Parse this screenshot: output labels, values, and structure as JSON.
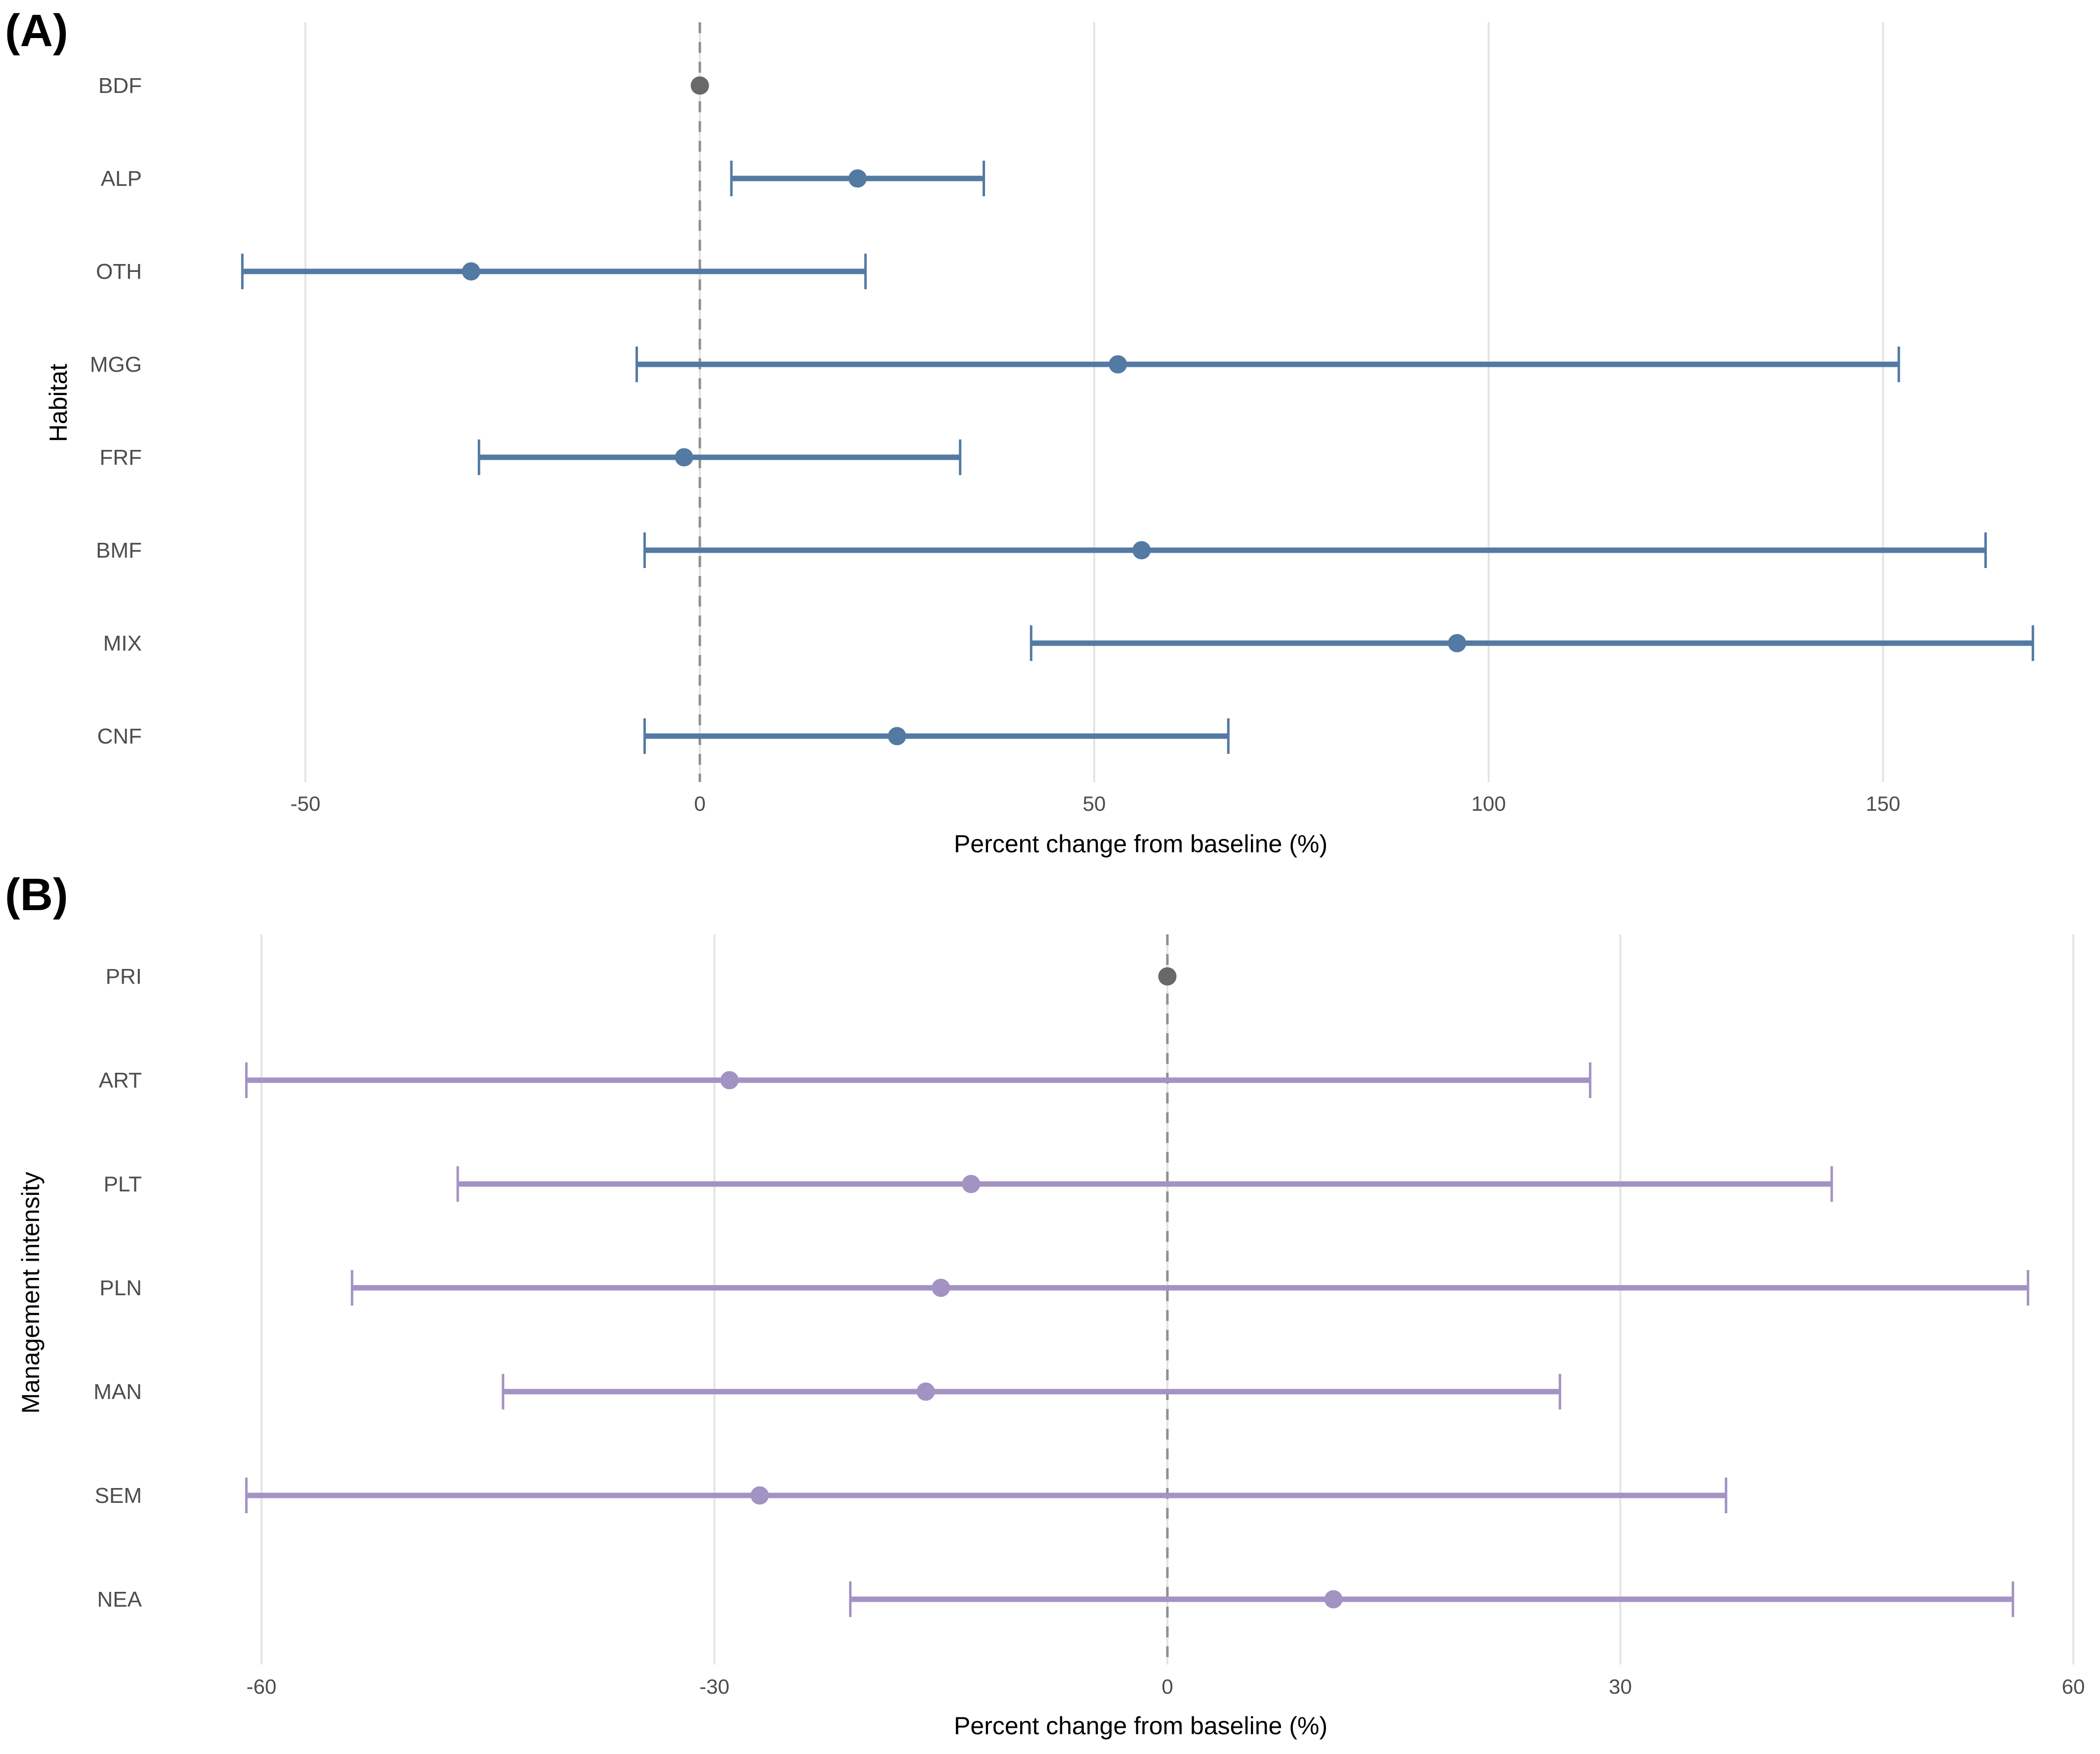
{
  "colors": {
    "habitat_series": "#527aa3",
    "management_series": "#a393c3",
    "reference_point": "#696969",
    "gridline": "#e4e4e4",
    "zero_dashed_line": "#8f8f8f",
    "tick_text": "#4d4d4d",
    "category_text": "#4d4d4d",
    "axis_title_text": "#000000"
  },
  "chart_data": [
    {
      "type": "scatter",
      "subtype": "forest-plot-horizontal-ci",
      "panel_label": "(A)",
      "ylabel": "Habitat",
      "xlabel": "Percent change from baseline (%)",
      "legend": "none",
      "grid": "vertical-only",
      "zero_reference_line": 0,
      "xlim": [
        -56,
        178
      ],
      "xticks": [
        -50,
        0,
        50,
        100,
        150
      ],
      "xtick_labels": [
        "-50",
        "0",
        "50",
        "100",
        "150"
      ],
      "categories": [
        "BDF",
        "ALP",
        "OTH",
        "MGG",
        "FRF",
        "BMF",
        "MIX",
        "CNF"
      ],
      "points": [
        {
          "category": "BDF",
          "value": 0,
          "ci_low": null,
          "ci_high": null,
          "reference": true
        },
        {
          "category": "ALP",
          "value": 20,
          "ci_low": 4,
          "ci_high": 36,
          "reference": false
        },
        {
          "category": "OTH",
          "value": -29,
          "ci_low": -58,
          "ci_high": 21,
          "reference": false
        },
        {
          "category": "MGG",
          "value": 53,
          "ci_low": -8,
          "ci_high": 152,
          "reference": false
        },
        {
          "category": "FRF",
          "value": -2,
          "ci_low": -28,
          "ci_high": 33,
          "reference": false
        },
        {
          "category": "BMF",
          "value": 56,
          "ci_low": -7,
          "ci_high": 163,
          "reference": false
        },
        {
          "category": "MIX",
          "value": 96,
          "ci_low": 42,
          "ci_high": 169,
          "reference": false
        },
        {
          "category": "CNF",
          "value": 25,
          "ci_low": -7,
          "ci_high": 67,
          "reference": false
        }
      ]
    },
    {
      "type": "scatter",
      "subtype": "forest-plot-horizontal-ci",
      "panel_label": "(B)",
      "ylabel": "Management intensity",
      "xlabel": "Percent change from baseline (%)",
      "legend": "none",
      "grid": "vertical-only",
      "zero_reference_line": 0,
      "xlim": [
        -68,
        62
      ],
      "xticks": [
        -60,
        -30,
        0,
        30,
        60
      ],
      "xtick_labels": [
        "-60",
        "-30",
        "0",
        "30",
        "60"
      ],
      "categories": [
        "PRI",
        "ART",
        "PLT",
        "PLN",
        "MAN",
        "SEM",
        "NEA"
      ],
      "points": [
        {
          "category": "PRI",
          "value": 0,
          "ci_low": null,
          "ci_high": null,
          "reference": true
        },
        {
          "category": "ART",
          "value": -29,
          "ci_low": -61,
          "ci_high": 28,
          "reference": false
        },
        {
          "category": "PLT",
          "value": -13,
          "ci_low": -47,
          "ci_high": 44,
          "reference": false
        },
        {
          "category": "PLN",
          "value": -15,
          "ci_low": -54,
          "ci_high": 57,
          "reference": false
        },
        {
          "category": "MAN",
          "value": -16,
          "ci_low": -44,
          "ci_high": 26,
          "reference": false
        },
        {
          "category": "SEM",
          "value": -27,
          "ci_low": -61,
          "ci_high": 37,
          "reference": false
        },
        {
          "category": "NEA",
          "value": 11,
          "ci_low": -21,
          "ci_high": 56,
          "reference": false
        }
      ]
    }
  ]
}
